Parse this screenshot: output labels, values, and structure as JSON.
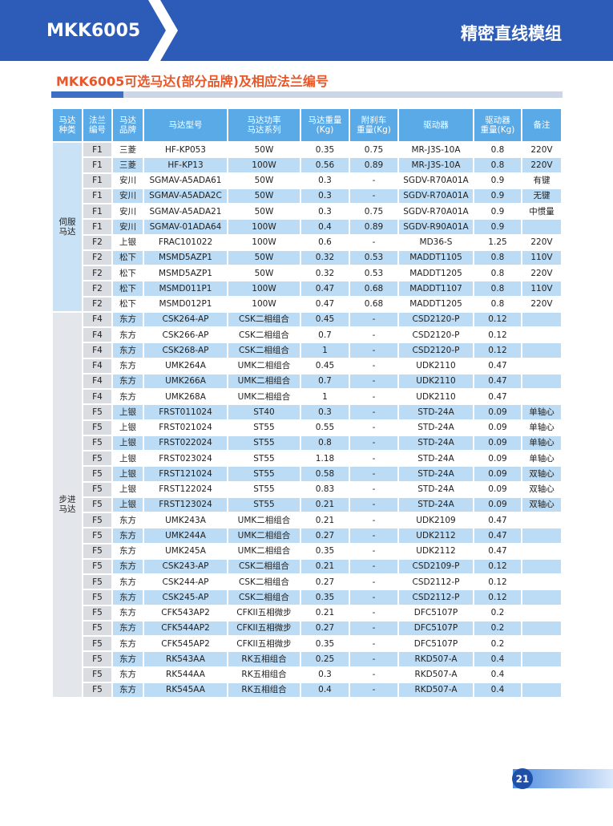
{
  "header": {
    "model": "MKK6005",
    "title": "精密直线模组"
  },
  "subtitle": "MKK6005可选马达(部分品牌)及相应法兰编号",
  "table": {
    "columns": [
      [
        "马达",
        "种类"
      ],
      [
        "法兰",
        "编号"
      ],
      [
        "马达",
        "品牌"
      ],
      [
        "马达型号"
      ],
      [
        "马达功率",
        "马达系列"
      ],
      [
        "马达重量",
        "(Kg)"
      ],
      [
        "附刹车",
        "重量(Kg)"
      ],
      [
        "驱动器"
      ],
      [
        "驱动器",
        "重量(Kg)"
      ],
      [
        "备注"
      ]
    ],
    "groups": [
      {
        "label": [
          "伺服",
          "马达"
        ],
        "rows": [
          [
            "F1",
            "三菱",
            "HF-KP053",
            "50W",
            "0.35",
            "0.75",
            "MR-J3S-10A",
            "0.8",
            "220V"
          ],
          [
            "F1",
            "三菱",
            "HF-KP13",
            "100W",
            "0.56",
            "0.89",
            "MR-J3S-10A",
            "0.8",
            "220V"
          ],
          [
            "F1",
            "安川",
            "SGMAV-A5ADA61",
            "50W",
            "0.3",
            "-",
            "SGDV-R70A01A",
            "0.9",
            "有键"
          ],
          [
            "F1",
            "安川",
            "SGMAV-A5ADA2C",
            "50W",
            "0.3",
            "-",
            "SGDV-R70A01A",
            "0.9",
            "无键"
          ],
          [
            "F1",
            "安川",
            "SGMAV-A5ADA21",
            "50W",
            "0.3",
            "0.75",
            "SGDV-R70A01A",
            "0.9",
            "中惯量"
          ],
          [
            "F1",
            "安川",
            "SGMAV-01ADA64",
            "100W",
            "0.4",
            "0.89",
            "SGDV-R90A01A",
            "0.9",
            null
          ],
          [
            "F2",
            "上银",
            "FRAC101022",
            "100W",
            "0.6",
            "-",
            "MD36-S",
            "1.25",
            "220V"
          ],
          [
            "F2",
            "松下",
            "MSMD5AZP1",
            "50W",
            "0.32",
            "0.53",
            "MADDT1105",
            "0.8",
            "110V"
          ],
          [
            "F2",
            "松下",
            "MSMD5AZP1",
            "50W",
            "0.32",
            "0.53",
            "MADDT1205",
            "0.8",
            "220V"
          ],
          [
            "F2",
            "松下",
            "MSMD011P1",
            "100W",
            "0.47",
            "0.68",
            "MADDT1107",
            "0.8",
            "110V"
          ],
          [
            "F2",
            "松下",
            "MSMD012P1",
            "100W",
            "0.47",
            "0.68",
            "MADDT1205",
            "0.8",
            "220V"
          ]
        ]
      },
      {
        "label": [
          "步进",
          "马达"
        ],
        "rows": [
          [
            "F4",
            "东方",
            "CSK264-AP",
            "CSK二相组合",
            "0.45",
            "-",
            "CSD2120-P",
            "0.12",
            null
          ],
          [
            "F4",
            "东方",
            "CSK266-AP",
            "CSK二相组合",
            "0.7",
            "-",
            "CSD2120-P",
            "0.12",
            null
          ],
          [
            "F4",
            "东方",
            "CSK268-AP",
            "CSK二相组合",
            "1",
            "-",
            "CSD2120-P",
            "0.12",
            null
          ],
          [
            "F4",
            "东方",
            "UMK264A",
            "UMK二相组合",
            "0.45",
            "-",
            "UDK2110",
            "0.47",
            null
          ],
          [
            "F4",
            "东方",
            "UMK266A",
            "UMK二相组合",
            "0.7",
            "-",
            "UDK2110",
            "0.47",
            null
          ],
          [
            "F4",
            "东方",
            "UMK268A",
            "UMK二相组合",
            "1",
            "-",
            "UDK2110",
            "0.47",
            null
          ],
          [
            "F5",
            "上银",
            "FRST011024",
            "ST40",
            "0.3",
            "-",
            "STD-24A",
            "0.09",
            "单轴心"
          ],
          [
            "F5",
            "上银",
            "FRST021024",
            "ST55",
            "0.55",
            "-",
            "STD-24A",
            "0.09",
            "单轴心"
          ],
          [
            "F5",
            "上银",
            "FRST022024",
            "ST55",
            "0.8",
            "-",
            "STD-24A",
            "0.09",
            "单轴心"
          ],
          [
            "F5",
            "上银",
            "FRST023024",
            "ST55",
            "1.18",
            "-",
            "STD-24A",
            "0.09",
            "单轴心"
          ],
          [
            "F5",
            "上银",
            "FRST121024",
            "ST55",
            "0.58",
            "-",
            "STD-24A",
            "0.09",
            "双轴心"
          ],
          [
            "F5",
            "上银",
            "FRST122024",
            "ST55",
            "0.83",
            "-",
            "STD-24A",
            "0.09",
            "双轴心"
          ],
          [
            "F5",
            "上银",
            "FRST123024",
            "ST55",
            "0.21",
            "-",
            "STD-24A",
            "0.09",
            "双轴心"
          ],
          [
            "F5",
            "东方",
            "UMK243A",
            "UMK二相组合",
            "0.21",
            "-",
            "UDK2109",
            "0.47",
            null
          ],
          [
            "F5",
            "东方",
            "UMK244A",
            "UMK二相组合",
            "0.27",
            "-",
            "UDK2112",
            "0.47",
            null
          ],
          [
            "F5",
            "东方",
            "UMK245A",
            "UMK二相组合",
            "0.35",
            "-",
            "UDK2112",
            "0.47",
            null
          ],
          [
            "F5",
            "东方",
            "CSK243-AP",
            "CSK二相组合",
            "0.21",
            "-",
            "CSD2109-P",
            "0.12",
            null
          ],
          [
            "F5",
            "东方",
            "CSK244-AP",
            "CSK二相组合",
            "0.27",
            "-",
            "CSD2112-P",
            "0.12",
            null
          ],
          [
            "F5",
            "东方",
            "CSK245-AP",
            "CSK二相组合",
            "0.35",
            "-",
            "CSD2112-P",
            "0.12",
            null
          ],
          [
            "F5",
            "东方",
            "CFK543AP2",
            "CFKII五相微步",
            "0.21",
            "-",
            "DFC5107P",
            "0.2",
            null
          ],
          [
            "F5",
            "东方",
            "CFK544AP2",
            "CFKII五相微步",
            "0.27",
            "-",
            "DFC5107P",
            "0.2",
            null
          ],
          [
            "F5",
            "东方",
            "CFK545AP2",
            "CFKII五相微步",
            "0.35",
            "-",
            "DFC5107P",
            "0.2",
            null
          ],
          [
            "F5",
            "东方",
            "RK543AA",
            "RK五相组合",
            "0.25",
            "-",
            "RKD507-A",
            "0.4",
            null
          ],
          [
            "F5",
            "东方",
            "RK544AA",
            "RK五相组合",
            "0.3",
            "-",
            "RKD507-A",
            "0.4",
            null
          ],
          [
            "F5",
            "东方",
            "RK545AA",
            "RK五相组合",
            "0.4",
            "-",
            "RKD507-A",
            "0.4",
            null
          ]
        ]
      }
    ]
  },
  "page_number": "21"
}
